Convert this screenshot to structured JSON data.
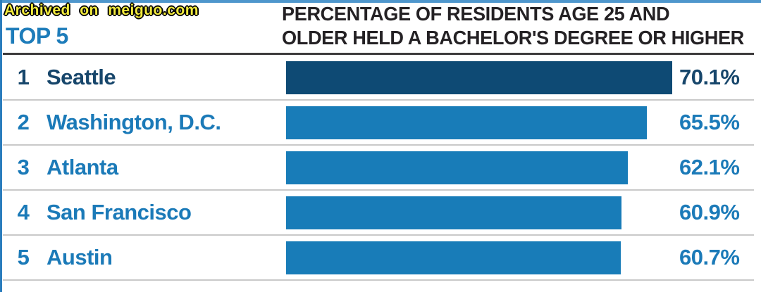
{
  "watermark": "Archived on meiguo.com",
  "header": {
    "list_label": "TOP 5",
    "title_line1": "PERCENTAGE OF RESIDENTS AGE 25 AND",
    "title_line2": "OLDER HELD A BACHELOR'S DEGREE OR HIGHER"
  },
  "chart_data": {
    "type": "bar",
    "orientation": "horizontal",
    "title": "PERCENTAGE OF RESIDENTS AGE 25 AND OLDER HELD A BACHELOR'S DEGREE OR HIGHER",
    "categories": [
      "Seattle",
      "Washington, D.C.",
      "Atlanta",
      "San Francisco",
      "Austin"
    ],
    "ranks": [
      1,
      2,
      3,
      4,
      5
    ],
    "values": [
      70.1,
      65.5,
      62.1,
      60.9,
      60.7
    ],
    "value_labels": [
      "70.1%",
      "65.5%",
      "62.1%",
      "60.9%",
      "60.7%"
    ],
    "xlim": [
      0,
      70.1
    ],
    "grid": false,
    "legend": false,
    "highlight_index": 0
  },
  "rows": [
    {
      "rank": "1",
      "city": "Seattle",
      "value_label": "70.1%"
    },
    {
      "rank": "2",
      "city": "Washington, D.C.",
      "value_label": "65.5%"
    },
    {
      "rank": "3",
      "city": "Atlanta",
      "value_label": "62.1%"
    },
    {
      "rank": "4",
      "city": "San Francisco",
      "value_label": "60.9%"
    },
    {
      "rank": "5",
      "city": "Austin",
      "value_label": "60.7%"
    }
  ],
  "colors": {
    "top_border": "#4e96cc",
    "left_border": "#2b7dbd",
    "watermark_fill": "#f2ea3d",
    "watermark_outline": "#000000",
    "top5_text": "#1d7cba",
    "title_text": "#242124",
    "divider": "#3d3b3c",
    "separator": "#c9c9c9",
    "bar": "#187cb8",
    "highlight_bar": "#0e4a74",
    "row_text": "#1b7ab8",
    "highlight_text": "#17466b"
  }
}
